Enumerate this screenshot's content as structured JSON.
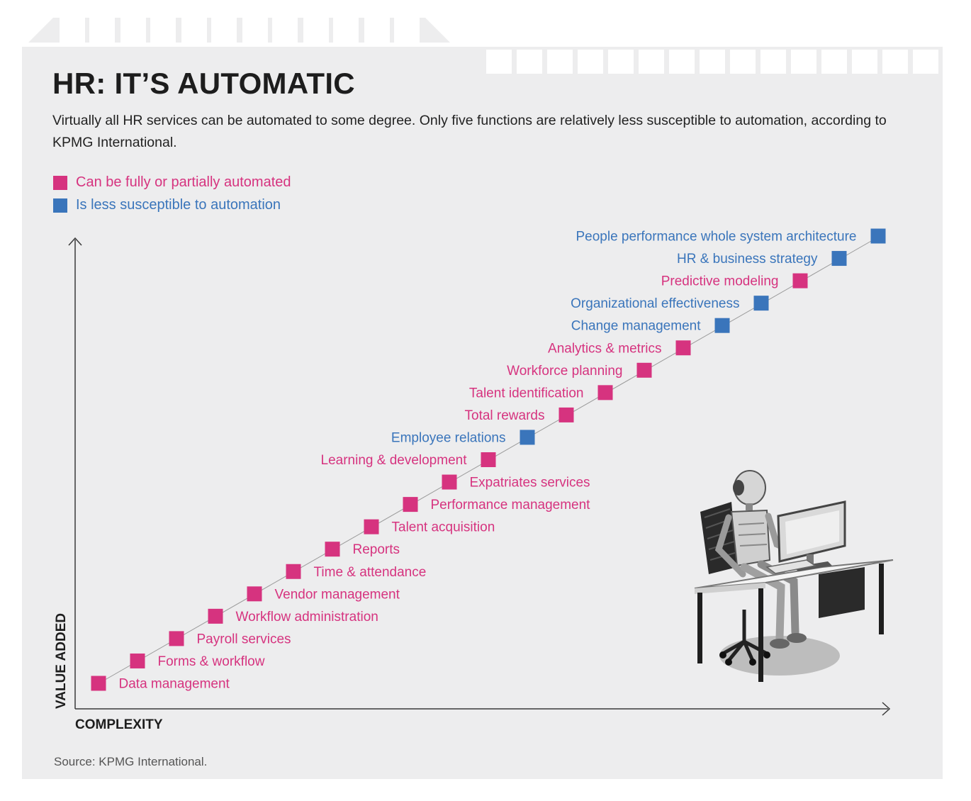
{
  "title": "HR: IT’S AUTOMATIC",
  "subtitle": "Virtually all HR services can be automated to some degree. Only five functions are relatively less susceptible to automation, according to KPMG International.",
  "source": "Source: KPMG International.",
  "colors": {
    "automated": "#d6337f",
    "less_susceptible": "#3a75bb",
    "background": "#ededee",
    "axis": "#3a3a3a"
  },
  "legend": [
    {
      "label": "Can be fully or partially automated",
      "category": "automated"
    },
    {
      "label": "Is less susceptible to automation",
      "category": "less_susceptible"
    }
  ],
  "chart_data": {
    "type": "scatter",
    "title": "HR: IT’S AUTOMATIC",
    "xlabel": "COMPLEXITY",
    "ylabel": "VALUE ADDED",
    "grid": false,
    "legend_position": "top-left",
    "series": [
      {
        "name": "Can be fully or partially automated",
        "category": "automated"
      },
      {
        "name": "Is less susceptible to automation",
        "category": "less_susceptible"
      }
    ],
    "points": [
      {
        "label": "Data management",
        "x": 1,
        "y": 1,
        "category": "automated",
        "label_side": "right"
      },
      {
        "label": "Forms & workflow",
        "x": 2,
        "y": 2,
        "category": "automated",
        "label_side": "right"
      },
      {
        "label": "Payroll services",
        "x": 3,
        "y": 3,
        "category": "automated",
        "label_side": "right"
      },
      {
        "label": "Workflow administration",
        "x": 4,
        "y": 4,
        "category": "automated",
        "label_side": "right"
      },
      {
        "label": "Vendor management",
        "x": 5,
        "y": 5,
        "category": "automated",
        "label_side": "right"
      },
      {
        "label": "Time & attendance",
        "x": 6,
        "y": 6,
        "category": "automated",
        "label_side": "right"
      },
      {
        "label": "Reports",
        "x": 7,
        "y": 7,
        "category": "automated",
        "label_side": "right"
      },
      {
        "label": "Talent acquisition",
        "x": 8,
        "y": 8,
        "category": "automated",
        "label_side": "right"
      },
      {
        "label": "Performance management",
        "x": 9,
        "y": 9,
        "category": "automated",
        "label_side": "right"
      },
      {
        "label": "Expatriates services",
        "x": 10,
        "y": 10,
        "category": "automated",
        "label_side": "right"
      },
      {
        "label": "Learning & development",
        "x": 11,
        "y": 11,
        "category": "automated",
        "label_side": "left"
      },
      {
        "label": "Employee relations",
        "x": 12,
        "y": 12,
        "category": "less_susceptible",
        "label_side": "left"
      },
      {
        "label": "Total rewards",
        "x": 13,
        "y": 13,
        "category": "automated",
        "label_side": "left"
      },
      {
        "label": "Talent identification",
        "x": 14,
        "y": 14,
        "category": "automated",
        "label_side": "left"
      },
      {
        "label": "Workforce planning",
        "x": 15,
        "y": 15,
        "category": "automated",
        "label_side": "left"
      },
      {
        "label": "Analytics & metrics",
        "x": 16,
        "y": 16,
        "category": "automated",
        "label_side": "left"
      },
      {
        "label": "Change management",
        "x": 17,
        "y": 17,
        "category": "less_susceptible",
        "label_side": "left"
      },
      {
        "label": "Organizational effectiveness",
        "x": 18,
        "y": 18,
        "category": "less_susceptible",
        "label_side": "left"
      },
      {
        "label": "Predictive modeling",
        "x": 19,
        "y": 19,
        "category": "automated",
        "label_side": "left"
      },
      {
        "label": "HR & business strategy",
        "x": 20,
        "y": 20,
        "category": "less_susceptible",
        "label_side": "left"
      },
      {
        "label": "People performance whole system architecture",
        "x": 21,
        "y": 21,
        "category": "less_susceptible",
        "label_side": "left"
      }
    ]
  }
}
